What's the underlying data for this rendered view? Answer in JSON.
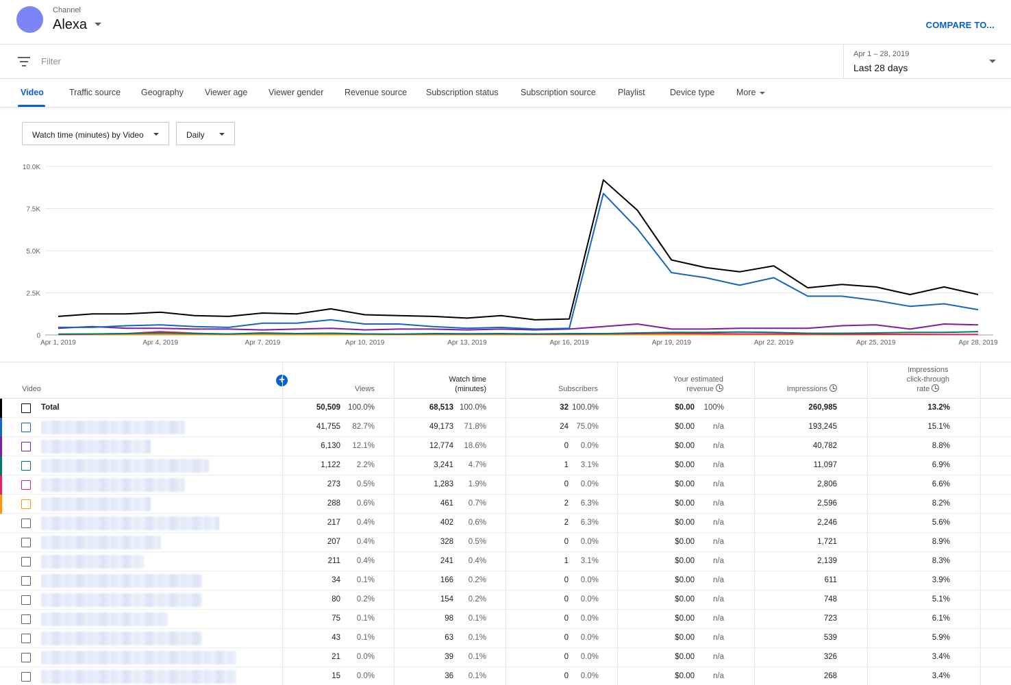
{
  "header": {
    "channel_label": "Channel",
    "channel_name": "Alexa",
    "compare_label": "COMPARE TO..."
  },
  "filter": {
    "placeholder": "Filter",
    "date_range_sub": "Apr 1 – 28, 2019",
    "date_range_main": "Last 28 days"
  },
  "tabs": [
    "Video",
    "Traffic source",
    "Geography",
    "Viewer age",
    "Viewer gender",
    "Revenue source",
    "Subscription status",
    "Subscription source",
    "Playlist",
    "Device type",
    "More"
  ],
  "controls": {
    "metric_select": "Watch time (minutes) by Video",
    "interval_select": "Daily"
  },
  "colors": {
    "accent": "#065fd4",
    "series": [
      "#000000",
      "#1565c0",
      "#7b1fa2",
      "#00796b",
      "#e91e63",
      "#ff9800"
    ]
  },
  "chart_data": {
    "type": "line",
    "x": [
      "Apr 1, 2019",
      "Apr 2, 2019",
      "Apr 3, 2019",
      "Apr 4, 2019",
      "Apr 5, 2019",
      "Apr 6, 2019",
      "Apr 7, 2019",
      "Apr 8, 2019",
      "Apr 9, 2019",
      "Apr 10, 2019",
      "Apr 11, 2019",
      "Apr 12, 2019",
      "Apr 13, 2019",
      "Apr 14, 2019",
      "Apr 15, 2019",
      "Apr 16, 2019",
      "Apr 17, 2019",
      "Apr 18, 2019",
      "Apr 19, 2019",
      "Apr 20, 2019",
      "Apr 21, 2019",
      "Apr 22, 2019",
      "Apr 23, 2019",
      "Apr 24, 2019",
      "Apr 25, 2019",
      "Apr 26, 2019",
      "Apr 27, 2019",
      "Apr 28, 2019"
    ],
    "x_tick_labels": [
      "Apr 1, 2019",
      "Apr 4, 2019",
      "Apr 7, 2019",
      "Apr 10, 2019",
      "Apr 13, 2019",
      "Apr 16, 2019",
      "Apr 19, 2019",
      "Apr 22, 2019",
      "Apr 25, 2019",
      "Apr 28, 2019"
    ],
    "y_ticks": [
      "0",
      "2.5K",
      "5.0K",
      "7.5K",
      "10.0K"
    ],
    "ylim": [
      0,
      10000
    ],
    "grid": true,
    "series": [
      {
        "color": "#000000",
        "values": [
          1100,
          1250,
          1250,
          1350,
          1150,
          1100,
          1300,
          1250,
          1550,
          1200,
          1150,
          1100,
          1000,
          1150,
          900,
          950,
          9200,
          7400,
          4450,
          4000,
          3750,
          4100,
          2800,
          3000,
          2850,
          2400,
          2850,
          2400
        ]
      },
      {
        "color": "#1565c0",
        "values": [
          450,
          450,
          550,
          600,
          500,
          450,
          700,
          700,
          900,
          650,
          650,
          500,
          400,
          450,
          350,
          400,
          8400,
          6300,
          3700,
          3400,
          2950,
          3400,
          2300,
          2300,
          2050,
          1700,
          1850,
          1500
        ]
      },
      {
        "color": "#7b1fa2",
        "values": [
          400,
          500,
          400,
          400,
          350,
          350,
          300,
          350,
          400,
          300,
          350,
          350,
          300,
          350,
          300,
          350,
          500,
          650,
          350,
          350,
          400,
          400,
          400,
          550,
          600,
          350,
          650,
          600
        ]
      },
      {
        "color": "#00796b",
        "values": [
          50,
          60,
          80,
          120,
          80,
          60,
          100,
          80,
          100,
          60,
          50,
          80,
          70,
          80,
          60,
          80,
          80,
          120,
          150,
          150,
          180,
          150,
          100,
          100,
          120,
          150,
          150,
          200
        ]
      },
      {
        "color": "#e91e63",
        "values": [
          30,
          50,
          80,
          200,
          100,
          50,
          120,
          80,
          100,
          60,
          40,
          60,
          50,
          60,
          40,
          50,
          60,
          80,
          100,
          80,
          60,
          60,
          50,
          40,
          40,
          40,
          30,
          30
        ]
      },
      {
        "color": "#ff9800",
        "values": [
          20,
          30,
          30,
          50,
          30,
          20,
          30,
          20,
          20,
          20,
          20,
          20,
          20,
          20,
          20,
          20,
          20,
          30,
          20,
          20,
          20,
          20,
          20,
          20,
          20,
          20,
          20,
          20
        ]
      }
    ]
  },
  "table": {
    "headers": {
      "video": "Video",
      "views": "Views",
      "watch_time_1": "Watch time",
      "watch_time_2": "(minutes)",
      "subscribers": "Subscribers",
      "revenue_1": "Your estimated",
      "revenue_2": "revenue",
      "impressions": "Impressions",
      "ctr_1": "Impressions",
      "ctr_2": "click-through",
      "ctr_3": "rate"
    },
    "rows": [
      {
        "name": "Total",
        "color": "#000000",
        "views": "50,509",
        "views_pct": "100.0%",
        "watch": "68,513",
        "watch_pct": "100.0%",
        "subs": "32",
        "subs_pct": "100.0%",
        "rev": "$0.00",
        "rev_pct": "100%",
        "impr": "260,985",
        "ctr": "13.2%"
      },
      {
        "name": "",
        "color": "#1565c0",
        "views": "41,755",
        "views_pct": "82.7%",
        "watch": "49,173",
        "watch_pct": "71.8%",
        "subs": "24",
        "subs_pct": "75.0%",
        "rev": "$0.00",
        "rev_pct": "n/a",
        "impr": "193,245",
        "ctr": "15.1%"
      },
      {
        "name": "",
        "color": "#7b1fa2",
        "views": "6,130",
        "views_pct": "12.1%",
        "watch": "12,774",
        "watch_pct": "18.6%",
        "subs": "0",
        "subs_pct": "0.0%",
        "rev": "$0.00",
        "rev_pct": "n/a",
        "impr": "40,782",
        "ctr": "8.8%"
      },
      {
        "name": "",
        "color": "#00796b",
        "views": "1,122",
        "views_pct": "2.2%",
        "watch": "3,241",
        "watch_pct": "4.7%",
        "subs": "1",
        "subs_pct": "3.1%",
        "rev": "$0.00",
        "rev_pct": "n/a",
        "impr": "11,097",
        "ctr": "6.9%"
      },
      {
        "name": "",
        "color": "#e91e63",
        "views": "273",
        "views_pct": "0.5%",
        "watch": "1,283",
        "watch_pct": "1.9%",
        "subs": "0",
        "subs_pct": "0.0%",
        "rev": "$0.00",
        "rev_pct": "n/a",
        "impr": "2,806",
        "ctr": "6.6%"
      },
      {
        "name": "",
        "color": "#ff9800",
        "views": "288",
        "views_pct": "0.6%",
        "watch": "461",
        "watch_pct": "0.7%",
        "subs": "2",
        "subs_pct": "6.3%",
        "rev": "$0.00",
        "rev_pct": "n/a",
        "impr": "2,596",
        "ctr": "8.2%"
      },
      {
        "name": "",
        "color": "",
        "views": "217",
        "views_pct": "0.4%",
        "watch": "402",
        "watch_pct": "0.6%",
        "subs": "2",
        "subs_pct": "6.3%",
        "rev": "$0.00",
        "rev_pct": "n/a",
        "impr": "2,246",
        "ctr": "5.6%"
      },
      {
        "name": "",
        "color": "",
        "views": "207",
        "views_pct": "0.4%",
        "watch": "328",
        "watch_pct": "0.5%",
        "subs": "0",
        "subs_pct": "0.0%",
        "rev": "$0.00",
        "rev_pct": "n/a",
        "impr": "1,721",
        "ctr": "8.9%"
      },
      {
        "name": "",
        "color": "",
        "views": "211",
        "views_pct": "0.4%",
        "watch": "241",
        "watch_pct": "0.4%",
        "subs": "1",
        "subs_pct": "3.1%",
        "rev": "$0.00",
        "rev_pct": "n/a",
        "impr": "2,139",
        "ctr": "8.3%"
      },
      {
        "name": "",
        "color": "",
        "views": "34",
        "views_pct": "0.1%",
        "watch": "166",
        "watch_pct": "0.2%",
        "subs": "0",
        "subs_pct": "0.0%",
        "rev": "$0.00",
        "rev_pct": "n/a",
        "impr": "611",
        "ctr": "3.9%"
      },
      {
        "name": "",
        "color": "",
        "views": "80",
        "views_pct": "0.2%",
        "watch": "154",
        "watch_pct": "0.2%",
        "subs": "0",
        "subs_pct": "0.0%",
        "rev": "$0.00",
        "rev_pct": "n/a",
        "impr": "748",
        "ctr": "5.1%"
      },
      {
        "name": "",
        "color": "",
        "views": "75",
        "views_pct": "0.1%",
        "watch": "98",
        "watch_pct": "0.1%",
        "subs": "0",
        "subs_pct": "0.0%",
        "rev": "$0.00",
        "rev_pct": "n/a",
        "impr": "723",
        "ctr": "6.1%"
      },
      {
        "name": "",
        "color": "",
        "views": "43",
        "views_pct": "0.1%",
        "watch": "63",
        "watch_pct": "0.1%",
        "subs": "0",
        "subs_pct": "0.0%",
        "rev": "$0.00",
        "rev_pct": "n/a",
        "impr": "539",
        "ctr": "5.9%"
      },
      {
        "name": "",
        "color": "",
        "views": "21",
        "views_pct": "0.0%",
        "watch": "39",
        "watch_pct": "0.1%",
        "subs": "0",
        "subs_pct": "0.0%",
        "rev": "$0.00",
        "rev_pct": "n/a",
        "impr": "326",
        "ctr": "3.4%"
      },
      {
        "name": "",
        "color": "",
        "views": "15",
        "views_pct": "0.0%",
        "watch": "36",
        "watch_pct": "0.1%",
        "subs": "0",
        "subs_pct": "0.0%",
        "rev": "$0.00",
        "rev_pct": "n/a",
        "impr": "268",
        "ctr": "3.4%"
      }
    ]
  }
}
